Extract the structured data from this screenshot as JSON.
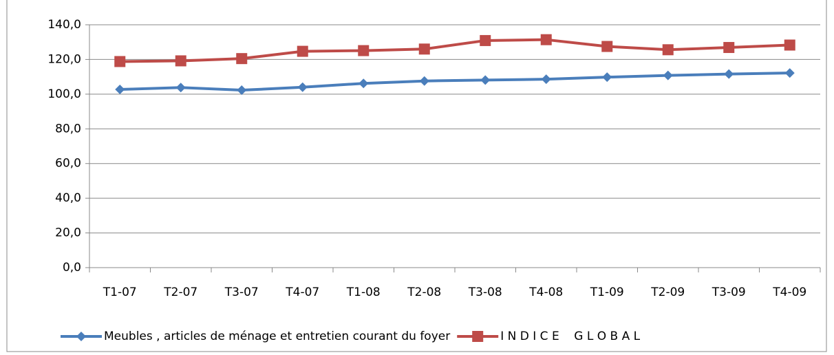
{
  "chart_data": {
    "type": "line",
    "categories": [
      "T1-07",
      "T2-07",
      "T3-07",
      "T4-07",
      "T1-08",
      "T2-08",
      "T3-08",
      "T4-08",
      "T1-09",
      "T2-09",
      "T3-09",
      "T4-09"
    ],
    "series": [
      {
        "name": "Meubles , articles de ménage et entretien courant du foyer",
        "color": "#4a7ebb",
        "marker": "diamond",
        "values": [
          102.7,
          103.8,
          102.3,
          104.0,
          106.2,
          107.6,
          108.1,
          108.6,
          109.8,
          110.8,
          111.6,
          112.2
        ]
      },
      {
        "name": "I N D I C E    G L O B A L",
        "color": "#be4b48",
        "marker": "square",
        "values": [
          118.8,
          119.2,
          120.5,
          124.7,
          125.1,
          126.0,
          130.9,
          131.4,
          127.5,
          125.6,
          126.9,
          128.3
        ]
      }
    ],
    "ylim": [
      0,
      140
    ],
    "yticks": [
      {
        "value": 0,
        "label": "0,0"
      },
      {
        "value": 20,
        "label": "20,0"
      },
      {
        "value": 40,
        "label": "40,0"
      },
      {
        "value": 60,
        "label": "60,0"
      },
      {
        "value": 80,
        "label": "80,0"
      },
      {
        "value": 100,
        "label": "100,0"
      },
      {
        "value": 120,
        "label": "120,0"
      },
      {
        "value": 140,
        "label": "140,0"
      }
    ],
    "grid": true,
    "legend": "bottom"
  }
}
